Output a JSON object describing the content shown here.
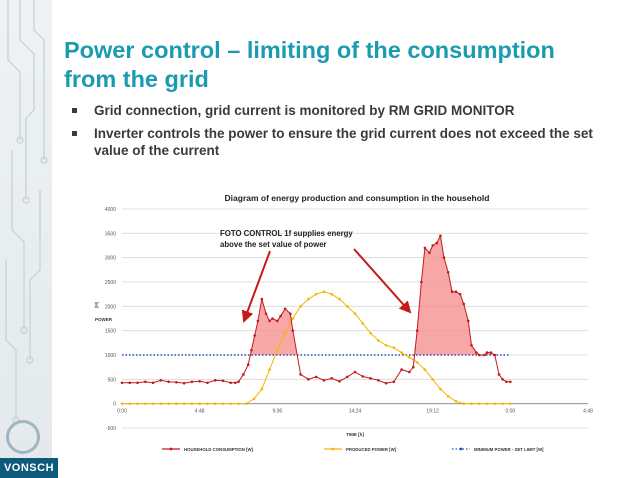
{
  "slide": {
    "title_line1": "Power control – limiting of the consumption",
    "title_line2": "from the grid",
    "bullets": [
      "Grid connection, grid current is monitored by RM GRID MONITOR",
      "Inverter controls the power to ensure the grid current does not exceed the set value of the current"
    ],
    "logo_text": "VONSCH"
  },
  "colors": {
    "title": "#1a9bb0",
    "consumption": "#c41a1a",
    "produced": "#f2b700",
    "minimum": "#2a4fbf",
    "fill": "#f58a8a"
  },
  "chart_data": {
    "type": "line",
    "title": "Diagram of energy production and consumption in the household",
    "xlabel": "TIME [h]",
    "ylabel_unit": "[W]",
    "ylabel": "POWER",
    "ylim": [
      -500,
      4000
    ],
    "xlim": [
      0,
      28.8
    ],
    "yticks": [
      "-500",
      "0",
      "500",
      "1000",
      "1500",
      "2000",
      "2500",
      "3000",
      "3500",
      "4000"
    ],
    "xticks": [
      "0:00",
      "4:48",
      "9:36",
      "14:24",
      "19:12",
      "0:00",
      "4:48"
    ],
    "annotation": [
      "FOTO CONTROL 1f supplies energy",
      "above the set value of power"
    ],
    "series": [
      {
        "name": "HOUSEHOLD CONSUMPTION [W]",
        "x": [
          0.0,
          0.48,
          0.96,
          1.44,
          1.92,
          2.4,
          2.88,
          3.36,
          3.84,
          4.32,
          4.8,
          5.28,
          5.76,
          6.24,
          6.72,
          7.0,
          7.2,
          7.5,
          7.8,
          8.0,
          8.2,
          8.4,
          8.64,
          8.9,
          9.12,
          9.3,
          9.6,
          9.8,
          10.08,
          10.4,
          10.56,
          11.04,
          11.52,
          12.0,
          12.48,
          12.96,
          13.44,
          13.92,
          14.4,
          14.88,
          15.36,
          15.84,
          16.32,
          16.8,
          17.28,
          17.76,
          18.0,
          18.24,
          18.5,
          18.72,
          19.0,
          19.2,
          19.45,
          19.68,
          19.9,
          20.16,
          20.4,
          20.64,
          20.9,
          21.12,
          21.4,
          21.6,
          21.9,
          22.08,
          22.4,
          22.56,
          22.8,
          23.04,
          23.3,
          23.52,
          23.76,
          24.0
        ],
        "y": [
          430,
          430,
          430,
          450,
          430,
          480,
          450,
          440,
          420,
          450,
          460,
          430,
          480,
          470,
          430,
          430,
          450,
          600,
          800,
          1100,
          1400,
          1700,
          2150,
          1850,
          1700,
          1750,
          1700,
          1800,
          1950,
          1850,
          1500,
          600,
          500,
          550,
          480,
          520,
          460,
          550,
          650,
          560,
          520,
          480,
          420,
          450,
          700,
          650,
          750,
          1500,
          2500,
          3200,
          3100,
          3250,
          3300,
          3450,
          3000,
          2700,
          2300,
          2300,
          2250,
          2050,
          1700,
          1200,
          1050,
          1000,
          1000,
          1050,
          1050,
          1000,
          600,
          500,
          450,
          450
        ]
      },
      {
        "name": "PRODUCED POWER [W]",
        "x": [
          0.0,
          0.48,
          0.96,
          1.44,
          1.92,
          2.4,
          2.88,
          3.36,
          3.84,
          4.32,
          4.8,
          5.28,
          5.76,
          6.24,
          6.72,
          7.2,
          7.68,
          8.16,
          8.64,
          9.12,
          9.6,
          10.08,
          10.56,
          11.04,
          11.52,
          12.0,
          12.48,
          12.96,
          13.44,
          13.92,
          14.4,
          14.88,
          15.36,
          15.84,
          16.32,
          16.8,
          17.28,
          17.76,
          18.24,
          18.72,
          19.2,
          19.68,
          20.16,
          20.64,
          21.12,
          21.6,
          22.08,
          22.56,
          23.04,
          23.52,
          24.0
        ],
        "y": [
          0,
          0,
          0,
          0,
          0,
          0,
          0,
          0,
          0,
          0,
          0,
          0,
          0,
          0,
          0,
          0,
          0,
          100,
          300,
          700,
          1100,
          1450,
          1750,
          2000,
          2150,
          2250,
          2300,
          2250,
          2150,
          2000,
          1850,
          1650,
          1450,
          1300,
          1200,
          1150,
          1050,
          950,
          850,
          700,
          500,
          300,
          150,
          50,
          0,
          0,
          0,
          0,
          0,
          0,
          0
        ]
      },
      {
        "name": "MINIMUM POWER - SET LIMIT [W]",
        "x": [
          0,
          24
        ],
        "y": [
          1000,
          1000
        ]
      }
    ]
  }
}
